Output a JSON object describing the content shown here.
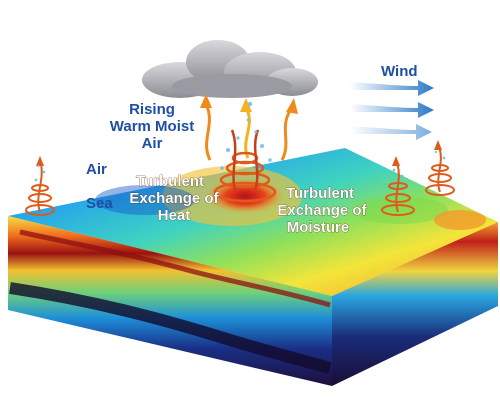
{
  "labels": {
    "rising_line1": "Rising",
    "rising_line2": "Warm Moist",
    "rising_line3": "Air",
    "wind": "Wind",
    "air": "Air",
    "sea": "Sea",
    "heat_line1": "Turbulent",
    "heat_line2": "Exchange of",
    "heat_line3": "Heat",
    "moisture_line1": "Turbulent",
    "moisture_line2": "Exchange of",
    "moisture_line3": "Moisture"
  },
  "colors": {
    "label_blue": "#1f4fa3",
    "label_white": "#ffffff",
    "wind_arrow": "#2a78c8",
    "vortex": "#e05a1a",
    "deep_ocean": "#1c0f3a"
  },
  "icons": [
    "cloud-icon",
    "wind-arrow-icon",
    "vortex-icon",
    "rising-air-arrow-icon"
  ]
}
